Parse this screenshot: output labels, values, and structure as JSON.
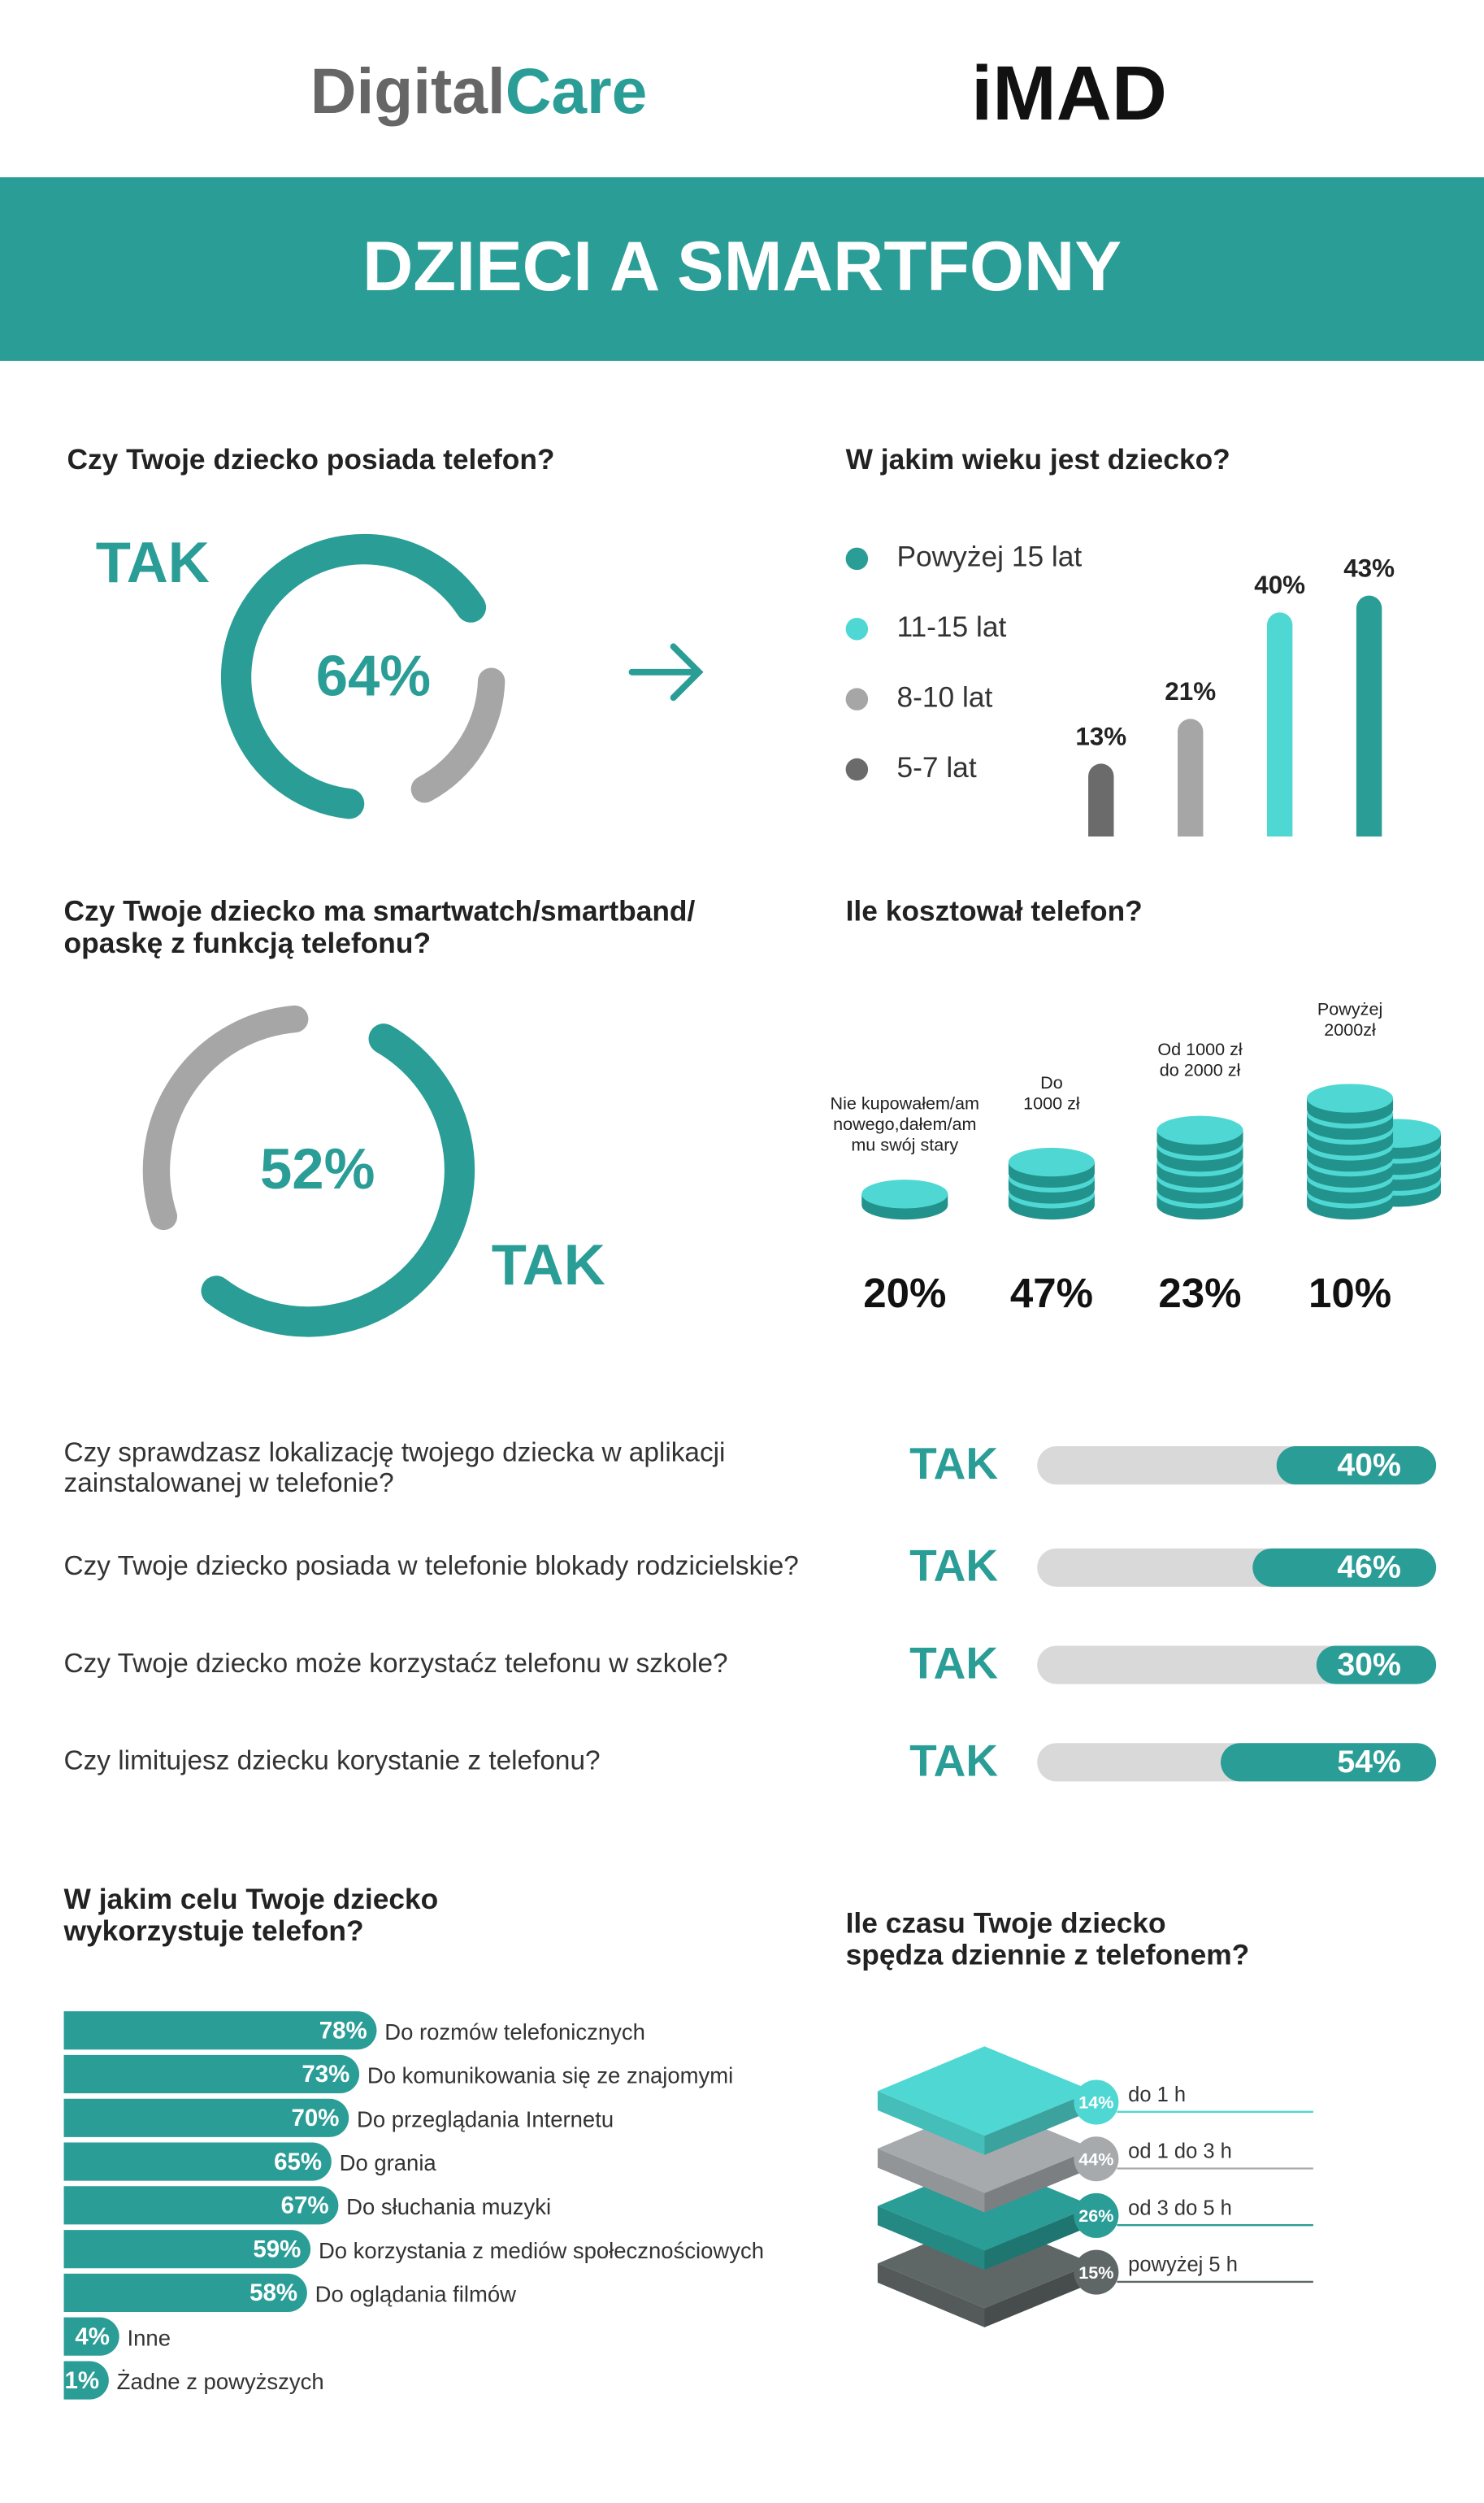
{
  "header": {
    "logo": [
      "Digital",
      "Care"
    ],
    "partner_logo": "iMAD",
    "title": "DZIECI A SMARTFONY"
  },
  "chart_data": [
    {
      "type": "donut",
      "title": [
        "Czy Twoje dziecko posiada telefon?"
      ],
      "label": "TAK",
      "values": [
        64
      ],
      "value_labels": [
        "64%"
      ],
      "colors": [
        "#2a9d96",
        "#a6a6a6"
      ]
    },
    {
      "type": "bar",
      "title": [
        "W jakim wieku jest dziecko?"
      ],
      "categories": [
        "Powyżej 15 lat",
        "11-15 lat",
        "8-10 lat",
        "5-7 lat"
      ],
      "values": [
        43,
        40,
        21,
        13
      ],
      "value_labels": [
        "43%",
        "40%",
        "21%",
        "13%"
      ],
      "colors": [
        "#2a9d96",
        "#4fd8d3",
        "#a6a6a6",
        "#6b6b6b"
      ]
    },
    {
      "type": "donut",
      "title": [
        "Czy Twoje dziecko ma smartwatch/smartband/",
        "opaskę z funkcją telefonu?"
      ],
      "label": "TAK",
      "values": [
        52
      ],
      "value_labels": [
        "52%"
      ],
      "colors": [
        "#2a9d96",
        "#a6a6a6"
      ]
    },
    {
      "type": "coins",
      "title": [
        "Ile kosztował telefon?"
      ],
      "categories": [
        [
          "Nie kupowałem/am",
          "nowego,dałem/am",
          "mu swój stary"
        ],
        [
          "Do",
          "1000 zł"
        ],
        [
          "Od 1000 zł",
          "do 2000 zł"
        ],
        [
          "Powyżej",
          "2000zł"
        ]
      ],
      "values": [
        20,
        47,
        23,
        10
      ],
      "value_labels": [
        "20%",
        "47%",
        "23%",
        "10%"
      ]
    },
    {
      "type": "progress",
      "categories": [
        [
          "Czy sprawdzasz lokalizację twojego dziecka w aplikacji",
          "zainstalowanej w telefonie?"
        ],
        [
          "Czy Twoje dziecko posiada w telefonie blokady rodzicielskie?"
        ],
        [
          "Czy Twoje dziecko może korzystaćz telefonu w szkole?"
        ],
        [
          "Czy limitujesz dziecku korystanie z telefonu?"
        ]
      ],
      "label": "TAK",
      "values": [
        40,
        46,
        30,
        54
      ],
      "value_labels": [
        "40%",
        "46%",
        "30%",
        "54%"
      ],
      "xlim": [
        0,
        100
      ]
    },
    {
      "type": "hbar",
      "title": [
        "W jakim celu Twoje dziecko",
        "wykorzystuje telefon?"
      ],
      "categories": [
        "Do rozmów telefonicznych",
        "Do komunikowania się ze znajomymi",
        "Do przeglądania Internetu",
        "Do grania",
        "Do słuchania muzyki",
        "Do korzystania z mediów społecznościowych",
        "Do oglądania filmów",
        "Inne",
        "Żadne z powyższych"
      ],
      "values": [
        78,
        73,
        70,
        65,
        67,
        59,
        58,
        4,
        1
      ],
      "value_labels": [
        "78%",
        "73%",
        "70%",
        "65%",
        "67%",
        "59%",
        "58%",
        "4%",
        "1%"
      ]
    },
    {
      "type": "layers",
      "title": [
        "Ile czasu Twoje dziecko",
        "spędza dziennie z telefonem?"
      ],
      "categories": [
        "do 1 h",
        "od 1 do 3 h",
        "od 3 do 5 h",
        "powyżej 5 h"
      ],
      "values": [
        14,
        44,
        26,
        15
      ],
      "value_labels": [
        "14%",
        "44%",
        "26%",
        "15%"
      ],
      "colors": [
        "#4fd8d3",
        "#a6aaad",
        "#2a9d96",
        "#5f6766"
      ]
    }
  ]
}
